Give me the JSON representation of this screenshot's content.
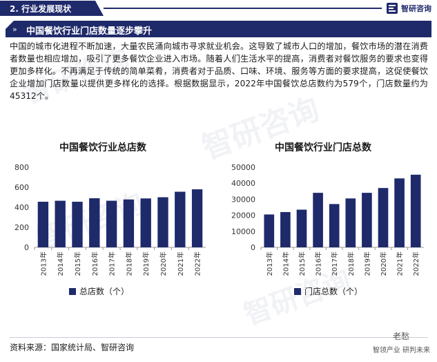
{
  "header": {
    "section_tag": "2. 行业发展现状",
    "brand": "智研咨询",
    "title": "中国餐饮行业门店数量逐步攀升"
  },
  "body_text": "中国的城市化进程不断加速，大量农民涌向城市寻求就业机会。这导致了城市人口的增加，餐饮市场的潜在消费者数量也相应增加，吸引了更多餐饮企业进入市场。随着人们生活水平的提高，消费者对餐饮服务的要求也变得更加多样化。不再满足于传统的简单菜肴，消费者对于品质、口味、环境、服务等方面的要求提高，这促使餐饮企业增加门店数量以提供更多样化的选择。根据数据显示，2022年中国餐饮总店数约为579个，门店数量约为45312个。",
  "source": "资料来源：国家统计局、智研咨询",
  "footer": {
    "watermark_brand": "智领产业  研判未来",
    "account": "老愁"
  },
  "colors": {
    "primary": "#1f2a6b",
    "bar": "#1f2a6b"
  },
  "chart_data": [
    {
      "type": "bar",
      "title": "中国餐饮行业总店数",
      "categories": [
        "2013年",
        "2014年",
        "2015年",
        "2016年",
        "2017年",
        "2018年",
        "2019年",
        "2020年",
        "2021年",
        "2022年"
      ],
      "series": [
        {
          "name": "总店数（个）",
          "values": [
            455,
            465,
            455,
            490,
            465,
            478,
            488,
            500,
            555,
            579
          ]
        }
      ],
      "ylim": [
        0,
        800
      ],
      "yticks": [
        0,
        200,
        400,
        600,
        800
      ],
      "legend": "bottom"
    },
    {
      "type": "bar",
      "title": "中国餐饮行业门店总数",
      "categories": [
        "2013年",
        "2014年",
        "2015年",
        "2016年",
        "2017年",
        "2018年",
        "2019年",
        "2020年",
        "2021年",
        "2022年"
      ],
      "series": [
        {
          "name": "门店总数（个）",
          "values": [
            20500,
            22000,
            23500,
            34000,
            27000,
            30500,
            34000,
            37000,
            43000,
            45312
          ]
        }
      ],
      "ylim": [
        0,
        50000
      ],
      "yticks": [
        0,
        10000,
        20000,
        30000,
        40000,
        50000
      ],
      "legend": "bottom"
    }
  ]
}
